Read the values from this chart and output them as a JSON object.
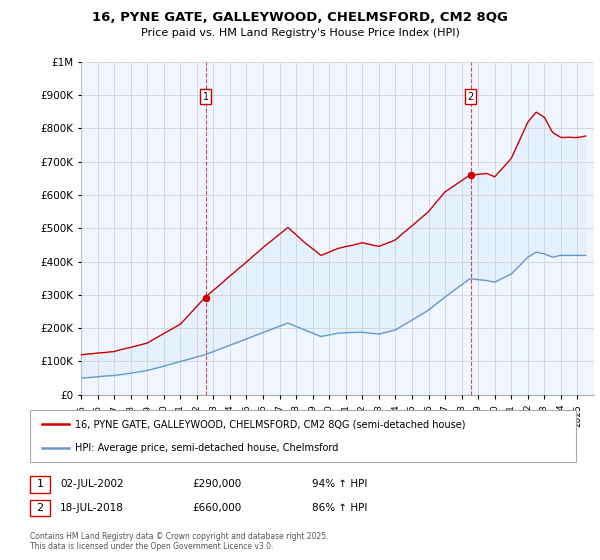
{
  "title": "16, PYNE GATE, GALLEYWOOD, CHELMSFORD, CM2 8QG",
  "subtitle": "Price paid vs. HM Land Registry's House Price Index (HPI)",
  "property_color": "#cc0000",
  "hpi_color": "#6699cc",
  "fill_color": "#ddeeff",
  "sale1_year": 2002.54,
  "sale1_price": 290000,
  "sale2_year": 2018.54,
  "sale2_price": 660000,
  "legend_property": "16, PYNE GATE, GALLEYWOOD, CHELMSFORD, CM2 8QG (semi-detached house)",
  "legend_hpi": "HPI: Average price, semi-detached house, Chelmsford",
  "annotation1_label": "1",
  "annotation1_date": "02-JUL-2002",
  "annotation1_price": "£290,000",
  "annotation1_hpi": "94% ↑ HPI",
  "annotation2_label": "2",
  "annotation2_date": "18-JUL-2018",
  "annotation2_price": "£660,000",
  "annotation2_hpi": "86% ↑ HPI",
  "footnote": "Contains HM Land Registry data © Crown copyright and database right 2025.\nThis data is licensed under the Open Government Licence v3.0.",
  "ylim_max": 1000000,
  "xmin": 1995,
  "xmax": 2026
}
